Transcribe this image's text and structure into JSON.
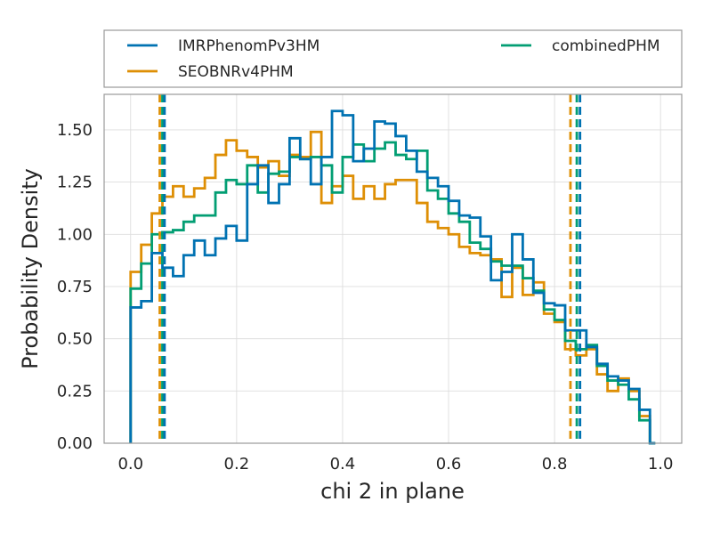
{
  "chart_data": {
    "type": "histogram",
    "xlabel": "chi 2 in plane",
    "ylabel": "Probability Density",
    "xlim": [
      -0.05,
      1.04
    ],
    "ylim": [
      0,
      1.67
    ],
    "xticks": [
      0.0,
      0.2,
      0.4,
      0.6,
      0.8,
      1.0
    ],
    "xtick_labels": [
      "0.0",
      "0.2",
      "0.4",
      "0.6",
      "0.8",
      "1.0"
    ],
    "yticks": [
      0.0,
      0.25,
      0.5,
      0.75,
      1.0,
      1.25,
      1.5
    ],
    "ytick_labels": [
      "0.00",
      "0.25",
      "0.50",
      "0.75",
      "1.00",
      "1.25",
      "1.50"
    ],
    "grid": true,
    "legend_position": "above-plot",
    "bin_edges": [
      0.0,
      0.02,
      0.04,
      0.06,
      0.08,
      0.1,
      0.12,
      0.14,
      0.16,
      0.18,
      0.2,
      0.22,
      0.24,
      0.26,
      0.28,
      0.3,
      0.32,
      0.34,
      0.36,
      0.38,
      0.4,
      0.42,
      0.44,
      0.46,
      0.48,
      0.5,
      0.52,
      0.54,
      0.56,
      0.58,
      0.6,
      0.62,
      0.64,
      0.66,
      0.68,
      0.7,
      0.72,
      0.74,
      0.76,
      0.78,
      0.8,
      0.82,
      0.84,
      0.86,
      0.88,
      0.9,
      0.92,
      0.94,
      0.96,
      0.98,
      0.99
    ],
    "series": [
      {
        "name": "IMRPhenomPv3HM",
        "color": "#0072b2",
        "values": [
          0.65,
          0.68,
          0.91,
          0.84,
          0.8,
          0.9,
          0.97,
          0.9,
          0.98,
          1.04,
          0.97,
          1.24,
          1.33,
          1.15,
          1.24,
          1.46,
          1.36,
          1.24,
          1.37,
          1.59,
          1.57,
          1.35,
          1.41,
          1.54,
          1.53,
          1.47,
          1.4,
          1.3,
          1.27,
          1.23,
          1.16,
          1.09,
          1.08,
          0.99,
          0.78,
          0.82,
          1.0,
          0.88,
          0.72,
          0.67,
          0.66,
          0.54,
          0.54,
          0.46,
          0.38,
          0.32,
          0.3,
          0.26,
          0.16,
          0.0
        ]
      },
      {
        "name": "SEOBNRv4PHM",
        "color": "#de8f05",
        "values": [
          0.82,
          0.95,
          1.1,
          1.18,
          1.23,
          1.18,
          1.22,
          1.27,
          1.38,
          1.45,
          1.4,
          1.37,
          1.32,
          1.35,
          1.28,
          1.38,
          1.37,
          1.49,
          1.15,
          1.23,
          1.28,
          1.17,
          1.23,
          1.17,
          1.24,
          1.26,
          1.26,
          1.15,
          1.06,
          1.03,
          1.0,
          0.94,
          0.91,
          0.9,
          0.88,
          0.7,
          0.84,
          0.71,
          0.77,
          0.62,
          0.58,
          0.45,
          0.42,
          0.45,
          0.33,
          0.25,
          0.31,
          0.25,
          0.13,
          0.0
        ]
      },
      {
        "name": "combinedPHM",
        "color": "#029e73",
        "values": [
          0.74,
          0.86,
          1.0,
          1.01,
          1.02,
          1.06,
          1.09,
          1.09,
          1.2,
          1.26,
          1.24,
          1.33,
          1.2,
          1.29,
          1.3,
          1.37,
          1.36,
          1.37,
          1.33,
          1.2,
          1.37,
          1.43,
          1.35,
          1.41,
          1.44,
          1.38,
          1.36,
          1.4,
          1.21,
          1.17,
          1.1,
          1.06,
          0.96,
          0.93,
          0.87,
          0.85,
          0.85,
          0.79,
          0.73,
          0.64,
          0.59,
          0.49,
          0.45,
          0.47,
          0.37,
          0.3,
          0.28,
          0.21,
          0.11,
          0.0
        ]
      }
    ],
    "vlines": [
      {
        "x": 0.055,
        "color": "#de8f05",
        "style": "dashed"
      },
      {
        "x": 0.06,
        "color": "#029e73",
        "style": "dashed"
      },
      {
        "x": 0.064,
        "color": "#0072b2",
        "style": "dashed"
      },
      {
        "x": 0.83,
        "color": "#de8f05",
        "style": "dashed"
      },
      {
        "x": 0.842,
        "color": "#029e73",
        "style": "dashed"
      },
      {
        "x": 0.848,
        "color": "#0072b2",
        "style": "dashed"
      }
    ]
  }
}
